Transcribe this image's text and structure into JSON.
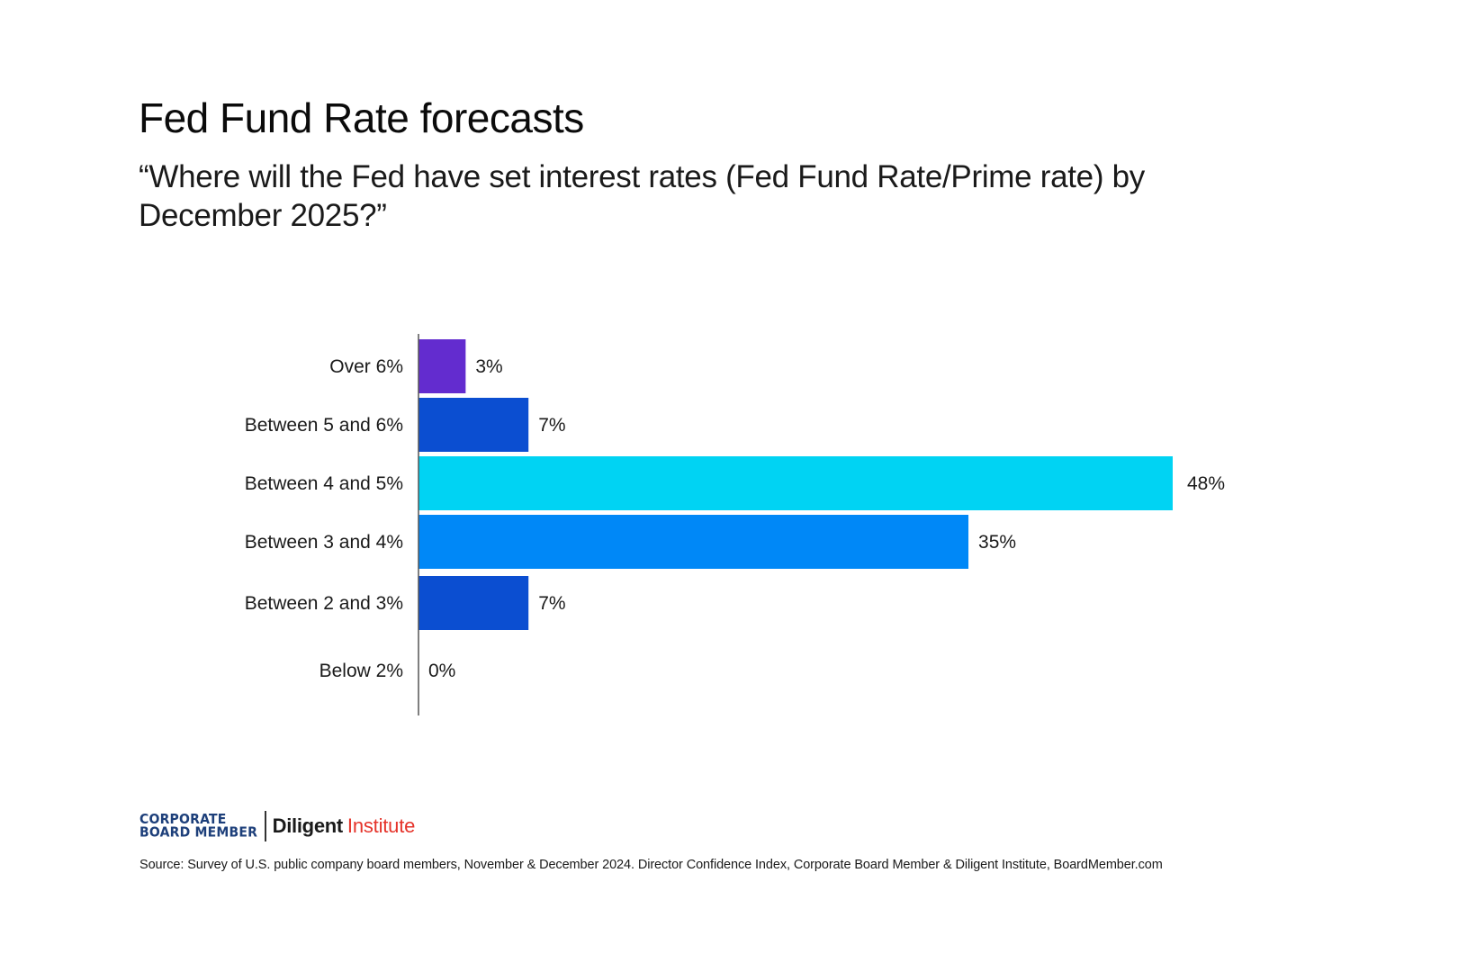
{
  "header": {
    "title": "Fed Fund Rate forecasts",
    "subtitle": "“Where will the Fed have set interest rates (Fed Fund Rate/Prime rate) by December 2025?”"
  },
  "chart_data": {
    "type": "bar",
    "orientation": "horizontal",
    "title": "Fed Fund Rate forecasts",
    "subtitle": "“Where will the Fed have set interest rates (Fed Fund Rate/Prime rate) by December 2025?”",
    "categories": [
      "Over 6%",
      "Between 5 and 6%",
      "Between 4 and 5%",
      "Between 3 and 4%",
      "Between 2 and 3%",
      "Below 2%"
    ],
    "values": [
      3,
      7,
      48,
      35,
      7,
      0
    ],
    "value_labels": [
      "3%",
      "7%",
      "48%",
      "35%",
      "7%",
      "0%"
    ],
    "colors": [
      "#632ccf",
      "#0b4ed1",
      "#00d3f3",
      "#0088f7",
      "#0b4ed1",
      "#0b4ed1"
    ],
    "xlabel": "",
    "ylabel": "",
    "xlim": [
      0,
      48
    ],
    "grid": false,
    "legend": "none"
  },
  "footer": {
    "logo_cbm_line1": "CORPORATE",
    "logo_cbm_line2": "BOARD MEMBER",
    "logo_diligent": "Diligent",
    "logo_institute": "Institute",
    "source": "Source: Survey of U.S. public company board members, November & December 2024. Director Confidence Index, Corporate Board Member & Diligent Institute, BoardMember.com"
  },
  "colors": {
    "axis": "#555555",
    "brand_blue": "#1d3f7a",
    "brand_red": "#e5332a"
  }
}
